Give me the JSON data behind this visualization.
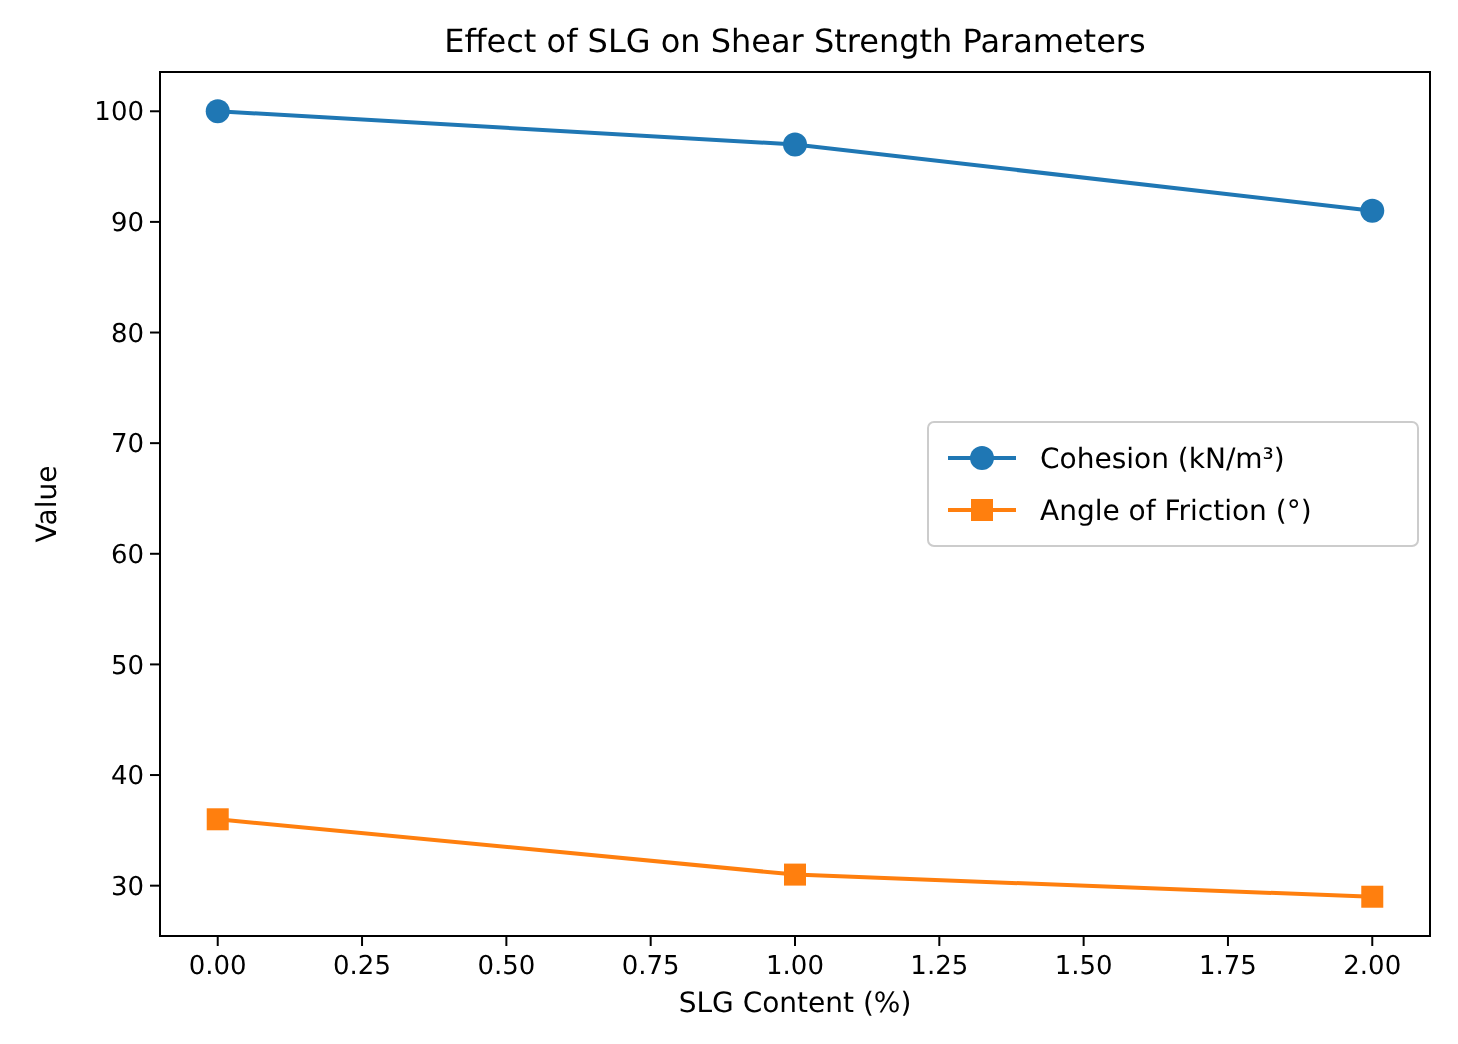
{
  "chart_data": {
    "type": "line",
    "title": "Effect of SLG on Shear Strength Parameters",
    "xlabel": "SLG Content (%)",
    "ylabel": "Value",
    "x": [
      0,
      1,
      2
    ],
    "series": [
      {
        "name": "Cohesion (kN/m³)",
        "color": "#1f77b4",
        "values": [
          100,
          97,
          91
        ],
        "marker": "circle"
      },
      {
        "name": "Angle of Friction (°)",
        "color": "#ff7f0e",
        "values": [
          36,
          31,
          29
        ],
        "marker": "square"
      }
    ],
    "xlim": [
      -0.1,
      2.1
    ],
    "xticks": [
      {
        "value": 0,
        "label": "0.00"
      },
      {
        "value": 0.25,
        "label": "0.25"
      },
      {
        "value": 0.5,
        "label": "0.50"
      },
      {
        "value": 0.75,
        "label": "0.75"
      },
      {
        "value": 1,
        "label": "1.00"
      },
      {
        "value": 1.25,
        "label": "1.25"
      },
      {
        "value": 1.5,
        "label": "1.50"
      },
      {
        "value": 1.75,
        "label": "1.75"
      },
      {
        "value": 2,
        "label": "2.00"
      }
    ],
    "ylim": [
      25.45,
      103.55
    ],
    "yticks": [
      30,
      40,
      50,
      60,
      70,
      80,
      90,
      100
    ],
    "grid": false,
    "legend": "right",
    "line_style": "solid"
  }
}
